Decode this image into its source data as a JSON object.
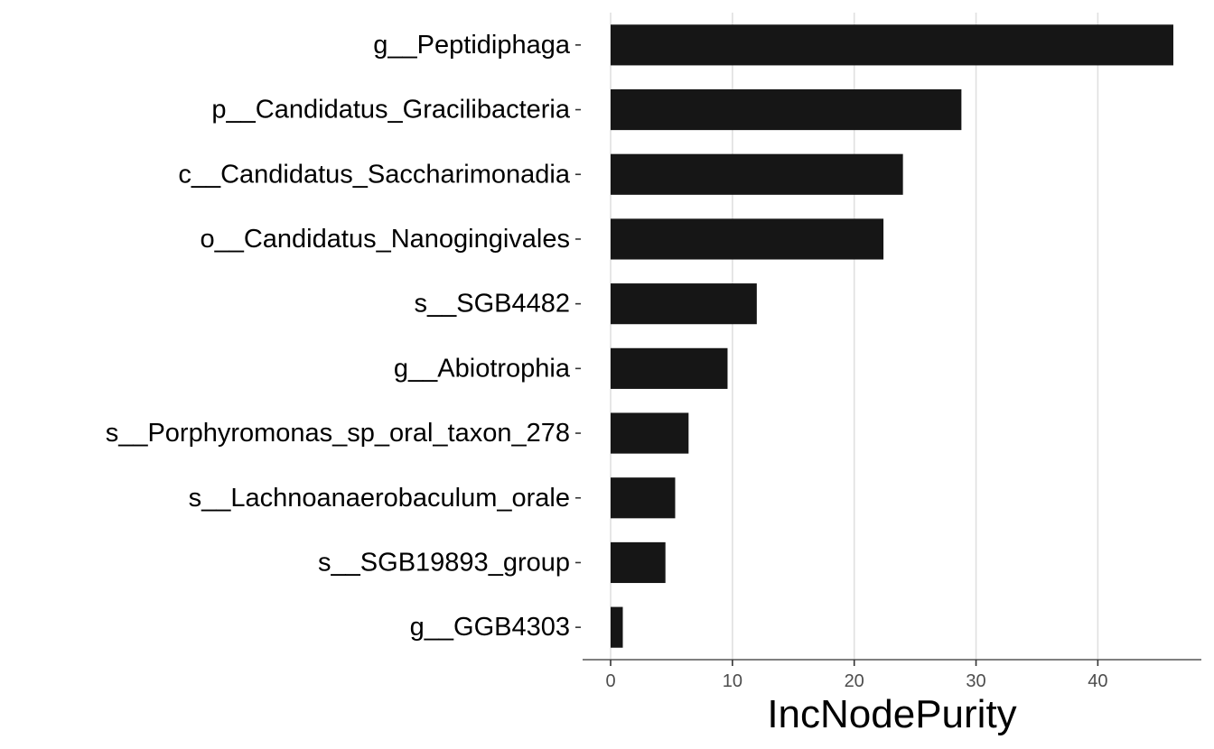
{
  "chart_data": {
    "type": "bar",
    "orientation": "horizontal",
    "title": "",
    "xlabel": "IncNodePurity",
    "ylabel": "",
    "categories": [
      "g__Peptidiphaga",
      "p__Candidatus_Gracilibacteria",
      "c__Candidatus_Saccharimonadia",
      "o__Candidatus_Nanogingivales",
      "s__SGB4482",
      "g__Abiotrophia",
      "s__Porphyromonas_sp_oral_taxon_278",
      "s__Lachnoanaerobaculum_orale",
      "s__SGB19893_group",
      "g__GGB4303"
    ],
    "values": [
      46.2,
      28.8,
      24.0,
      22.4,
      12.0,
      9.6,
      6.4,
      5.3,
      4.5,
      1.0
    ],
    "xlim": [
      -2.3,
      48.5
    ],
    "xticks": [
      0,
      10,
      20,
      30,
      40
    ],
    "xtick_labels": [
      "0",
      "10",
      "20",
      "30",
      "40"
    ],
    "grid": "vertical major lines",
    "legend": "none",
    "colors": {
      "bar": "#161616",
      "grid": "#e0e0e0",
      "axis": "#7f7f7f",
      "tick_text": "#4d4d4d",
      "label_text": "#000000"
    }
  }
}
